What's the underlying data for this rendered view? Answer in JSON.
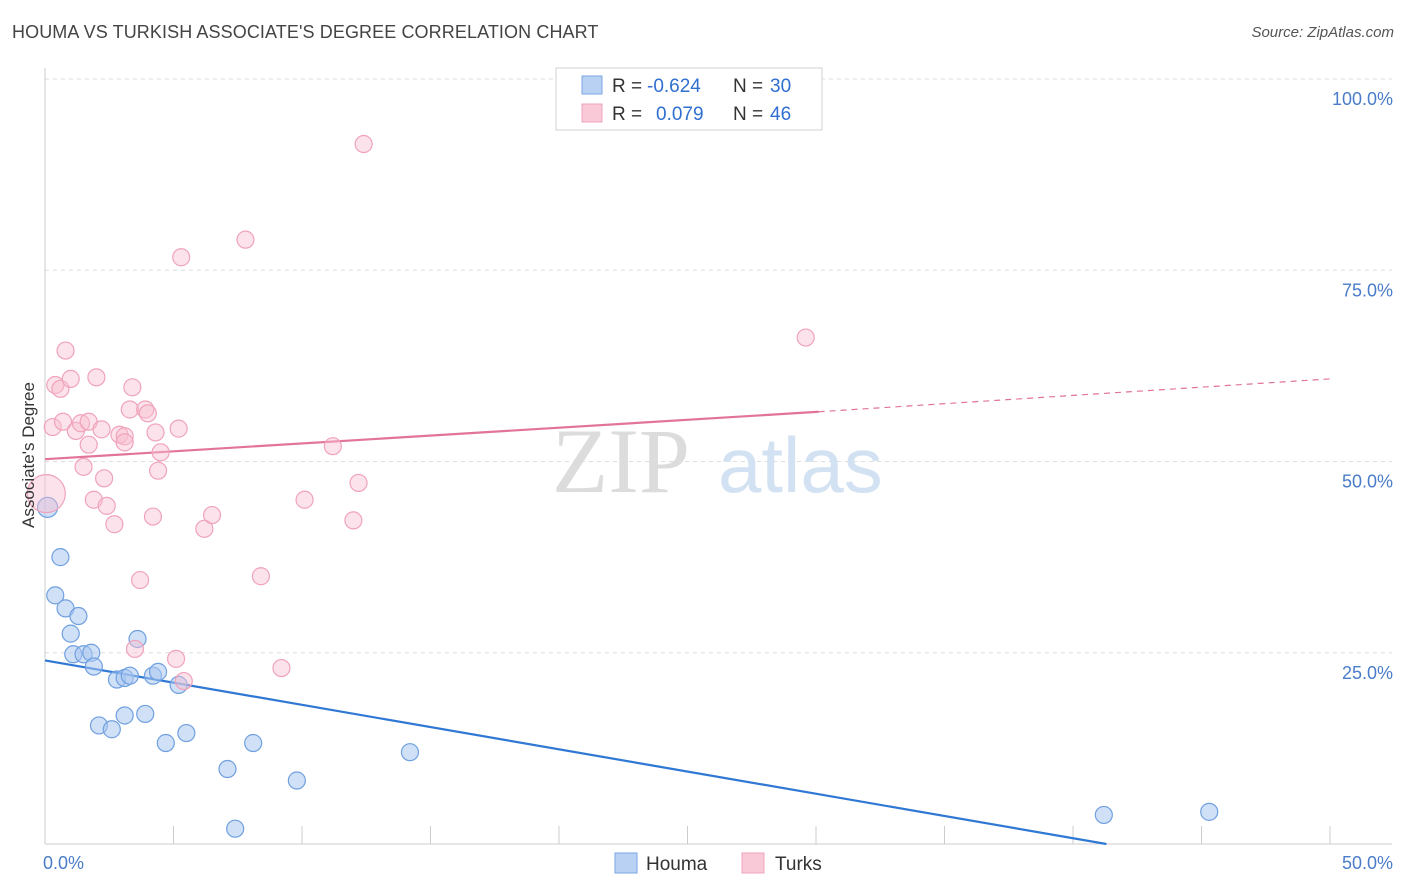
{
  "title": "HOUMA VS TURKISH ASSOCIATE'S DEGREE CORRELATION CHART",
  "source": "Source: ZipAtlas.com",
  "chart_data": {
    "type": "scatter",
    "title": "HOUMA VS TURKISH ASSOCIATE'S DEGREE CORRELATION CHART",
    "xlabel": "",
    "ylabel": "Associate's Degree",
    "xlim": [
      0,
      50
    ],
    "ylim": [
      0,
      100
    ],
    "x_tick_labels": [
      "0.0%",
      "50.0%"
    ],
    "y_ticks": [
      25,
      50,
      75,
      100
    ],
    "y_tick_labels": [
      "25.0%",
      "50.0%",
      "75.0%",
      "100.0%"
    ],
    "grid": true,
    "legend_position": "top-center",
    "watermark": {
      "zip": "ZIP",
      "atlas": "atlas"
    },
    "colors": {
      "houma": "#6fa0e0",
      "turks": "#f2a3bb",
      "houma_line": "#2f78d4",
      "turks_line": "#e2739a"
    },
    "stats": [
      {
        "series": "Houma",
        "r_label": "R =",
        "r": "-0.624",
        "n_label": "N =",
        "n": "30"
      },
      {
        "series": "Turks",
        "r_label": "R =",
        "r": "0.079",
        "n_label": "N =",
        "n": "46"
      }
    ],
    "series": [
      {
        "name": "Houma",
        "points": [
          [
            0.1,
            44.0
          ],
          [
            0.4,
            32.5
          ],
          [
            0.6,
            37.5
          ],
          [
            0.8,
            30.8
          ],
          [
            1.0,
            27.5
          ],
          [
            1.1,
            24.8
          ],
          [
            1.3,
            29.8
          ],
          [
            1.5,
            24.8
          ],
          [
            1.8,
            25.0
          ],
          [
            1.9,
            23.2
          ],
          [
            2.1,
            15.5
          ],
          [
            2.6,
            15.0
          ],
          [
            2.8,
            21.5
          ],
          [
            3.1,
            21.7
          ],
          [
            3.1,
            16.8
          ],
          [
            3.3,
            22.0
          ],
          [
            3.6,
            26.8
          ],
          [
            3.9,
            17.0
          ],
          [
            4.2,
            22.0
          ],
          [
            4.4,
            22.5
          ],
          [
            4.7,
            13.2
          ],
          [
            5.2,
            20.8
          ],
          [
            5.5,
            14.5
          ],
          [
            7.1,
            9.8
          ],
          [
            7.4,
            2.0
          ],
          [
            8.1,
            13.2
          ],
          [
            9.8,
            8.3
          ],
          [
            14.2,
            12.0
          ],
          [
            41.2,
            3.8
          ],
          [
            45.3,
            4.2
          ]
        ],
        "trend": {
          "x": [
            0,
            41.3
          ],
          "y": [
            24.0,
            0
          ]
        }
      },
      {
        "name": "Turks",
        "points": [
          [
            0.05,
            45.8
          ],
          [
            0.3,
            54.5
          ],
          [
            0.4,
            60.0
          ],
          [
            0.6,
            59.5
          ],
          [
            0.7,
            55.2
          ],
          [
            0.8,
            64.5
          ],
          [
            1.0,
            60.8
          ],
          [
            1.2,
            54.0
          ],
          [
            1.4,
            55.0
          ],
          [
            1.5,
            49.3
          ],
          [
            1.7,
            52.2
          ],
          [
            1.7,
            55.2
          ],
          [
            1.9,
            45.0
          ],
          [
            2.0,
            61.0
          ],
          [
            2.2,
            54.2
          ],
          [
            2.3,
            47.8
          ],
          [
            2.4,
            44.2
          ],
          [
            2.7,
            41.8
          ],
          [
            2.9,
            53.5
          ],
          [
            3.1,
            53.3
          ],
          [
            3.1,
            52.5
          ],
          [
            3.3,
            56.8
          ],
          [
            3.4,
            59.7
          ],
          [
            3.5,
            25.5
          ],
          [
            3.7,
            34.5
          ],
          [
            3.9,
            56.8
          ],
          [
            4.0,
            56.3
          ],
          [
            4.2,
            42.8
          ],
          [
            4.3,
            53.8
          ],
          [
            4.4,
            48.8
          ],
          [
            4.5,
            51.2
          ],
          [
            5.1,
            24.2
          ],
          [
            5.2,
            54.3
          ],
          [
            5.3,
            76.7
          ],
          [
            5.4,
            21.3
          ],
          [
            6.2,
            41.2
          ],
          [
            6.5,
            43.0
          ],
          [
            7.8,
            79.0
          ],
          [
            8.4,
            35.0
          ],
          [
            9.2,
            23.0
          ],
          [
            10.1,
            45.0
          ],
          [
            11.2,
            52.0
          ],
          [
            12.0,
            42.3
          ],
          [
            12.2,
            47.2
          ],
          [
            12.4,
            91.5
          ],
          [
            29.6,
            66.2
          ]
        ],
        "trend": {
          "x": [
            0,
            30.1
          ],
          "y": [
            50.3,
            56.5
          ]
        },
        "trend_extension": {
          "x": [
            30.1,
            50.0
          ],
          "y": [
            56.5,
            60.8
          ]
        }
      }
    ]
  }
}
